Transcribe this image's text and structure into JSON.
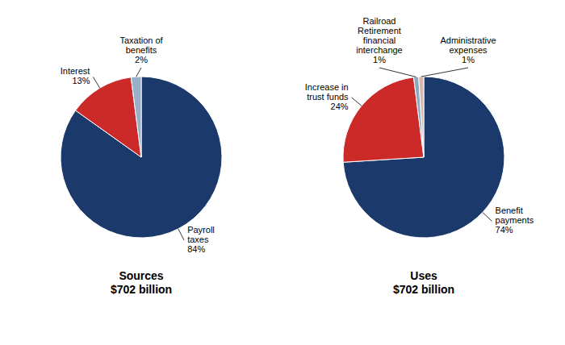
{
  "chart_data": [
    {
      "type": "pie",
      "title": "Sources\n$702 billion",
      "categories": [
        "Payroll\ntaxes",
        "Interest",
        "Taxation of\nbenefits"
      ],
      "values": [
        84,
        13,
        2
      ],
      "value_labels": [
        "84%",
        "13%",
        "2%"
      ],
      "colors": [
        "#1b3a6b",
        "#cc2929",
        "#9ab0c8"
      ],
      "data_labels": true
    },
    {
      "type": "pie",
      "title": "Uses\n$702 billion",
      "categories": [
        "Benefit\npayments",
        "Increase in\ntrust funds",
        "Railroad\nRetirement\nfinancial\ninterchange",
        "Administrative\nexpenses"
      ],
      "values": [
        74,
        24,
        1,
        1
      ],
      "value_labels": [
        "74%",
        "24%",
        "1%",
        "1%"
      ],
      "colors": [
        "#1b3a6b",
        "#cc2929",
        "#8ea8bf",
        "#d4b8b0"
      ],
      "data_labels": true
    }
  ]
}
